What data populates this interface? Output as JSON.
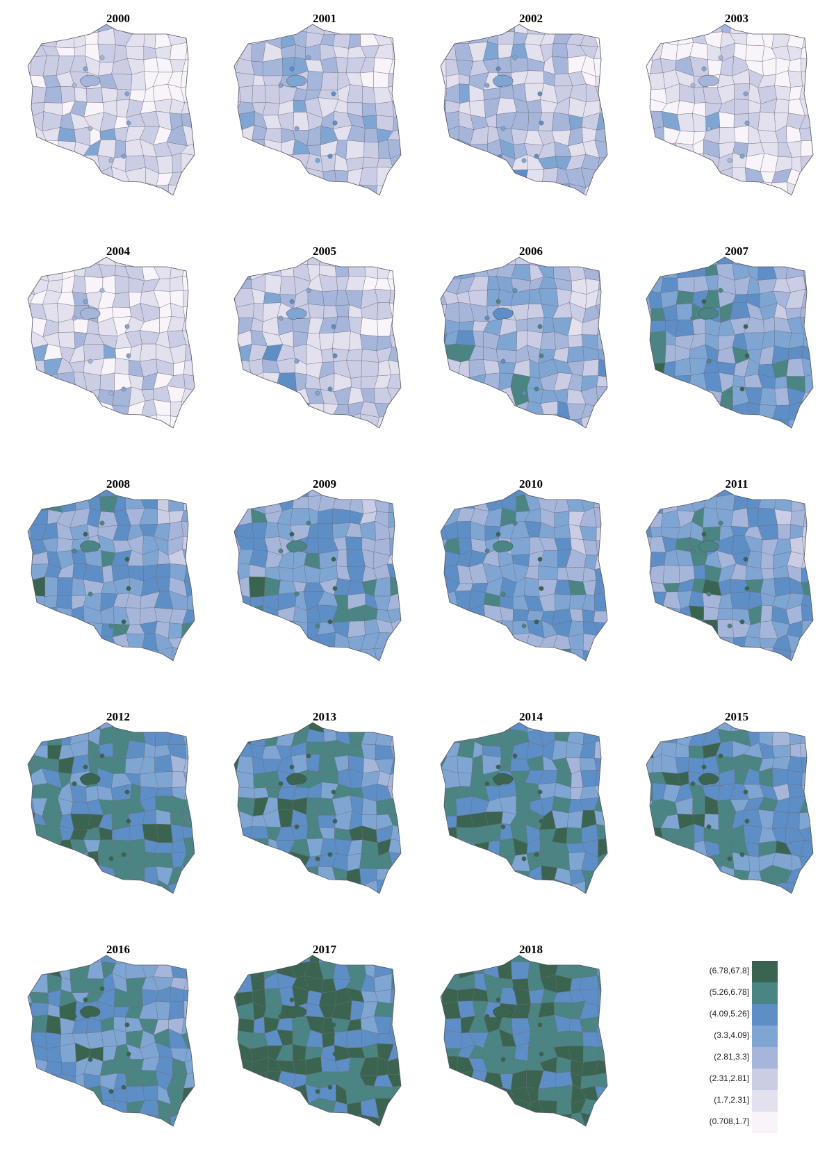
{
  "figure": {
    "map_outline": "Poland, counties (powiats)"
  },
  "chart_data": {
    "type": "choropleth",
    "region": "Poland",
    "panels": [
      {
        "year": "2000",
        "class_index": 1
      },
      {
        "year": "2001",
        "class_index": 2
      },
      {
        "year": "2002",
        "class_index": 2
      },
      {
        "year": "2003",
        "class_index": 1
      },
      {
        "year": "2004",
        "class_index": 1
      },
      {
        "year": "2005",
        "class_index": 2
      },
      {
        "year": "2006",
        "class_index": 3
      },
      {
        "year": "2007",
        "class_index": 4
      },
      {
        "year": "2008",
        "class_index": 4
      },
      {
        "year": "2009",
        "class_index": 4
      },
      {
        "year": "2010",
        "class_index": 4
      },
      {
        "year": "2011",
        "class_index": 4
      },
      {
        "year": "2012",
        "class_index": 5
      },
      {
        "year": "2013",
        "class_index": 5
      },
      {
        "year": "2014",
        "class_index": 5
      },
      {
        "year": "2015",
        "class_index": 5
      },
      {
        "year": "2016",
        "class_index": 5
      },
      {
        "year": "2017",
        "class_index": 6
      },
      {
        "year": "2018",
        "class_index": 6
      }
    ],
    "legend": [
      {
        "label": "(6.78,67.8]",
        "color": "#3a6450"
      },
      {
        "label": "(5.26,6.78]",
        "color": "#4a8584"
      },
      {
        "label": "(4.09,5.26]",
        "color": "#5d8ec6"
      },
      {
        "label": "(3.3,4.09]",
        "color": "#7fa6d3"
      },
      {
        "label": "(2.81,3.3]",
        "color": "#a6b6da"
      },
      {
        "label": "(2.31,2.81]",
        "color": "#cbcde5"
      },
      {
        "label": "(1.7,2.31]",
        "color": "#e4e1ef"
      },
      {
        "label": "(0.708,1.7]",
        "color": "#f8f4f9"
      }
    ]
  }
}
